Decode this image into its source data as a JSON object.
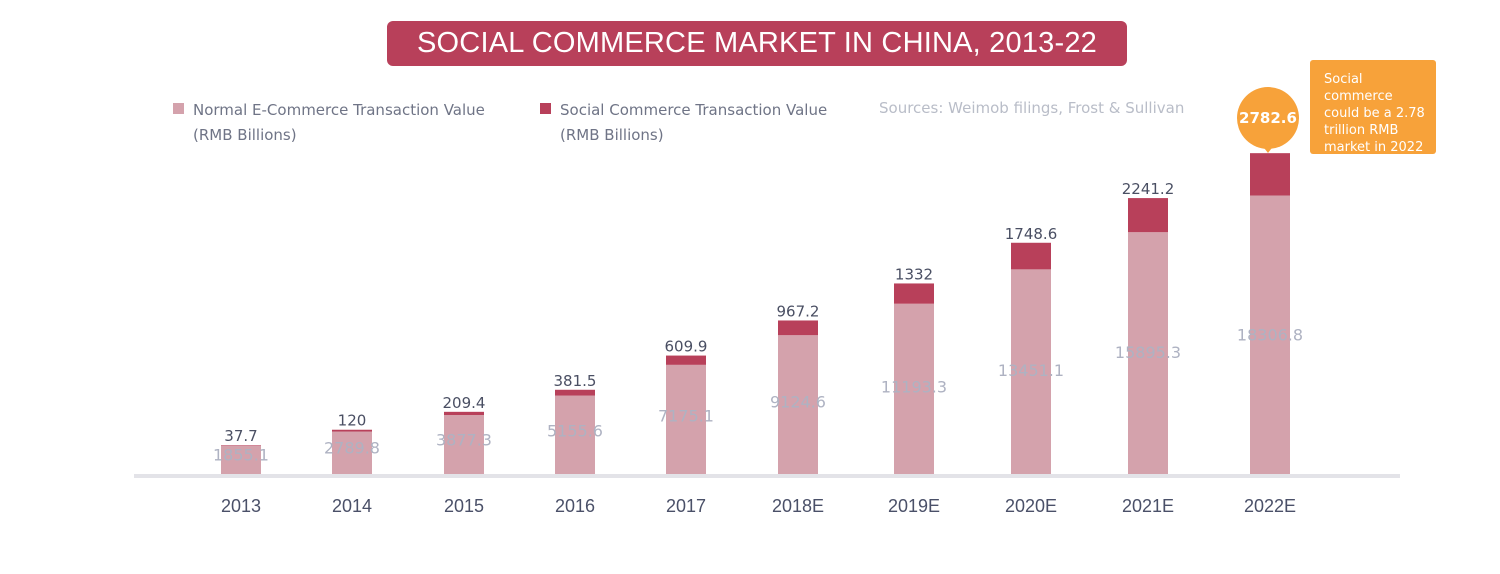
{
  "chart_data": {
    "type": "bar",
    "stacked": true,
    "title": "SOCIAL COMMERCE MARKET IN CHINA, 2013-22",
    "source": "Sources: Weimob filings, Frost & Sullivan",
    "categories": [
      "2013",
      "2014",
      "2015",
      "2016",
      "2017",
      "2018E",
      "2019E",
      "2020E",
      "2021E",
      "2022E"
    ],
    "series": [
      {
        "legend_line1": "Normal E-Commerce Transaction Value",
        "legend_line2": "(RMB Billions)",
        "color": "#d4a2ac",
        "values": [
          1855.1,
          2789.8,
          3877.3,
          5155.6,
          7175.1,
          9124.6,
          11193.3,
          13451.1,
          15895.3,
          18306.8
        ],
        "labels": [
          "1855.1",
          "2789.8",
          "3877.3",
          "5155.6",
          "7175.1",
          "9124.6",
          "11193.3",
          "13451.1",
          "15895.3",
          "18306.8"
        ]
      },
      {
        "legend_line1": "Social Commerce Transaction Value",
        "legend_line2": "(RMB Billions)",
        "color": "#b8405a",
        "values": [
          37.7,
          120,
          209.4,
          381.5,
          609.9,
          967.2,
          1332,
          1748.6,
          2241.2,
          2782.6
        ],
        "labels": [
          "37.7",
          "120",
          "209.4",
          "381.5",
          "609.9",
          "967.2",
          "1332",
          "1748.6",
          "2241.2",
          ""
        ]
      }
    ],
    "ylim": [
      0,
      21100
    ],
    "grid": false,
    "legend_position": "top-left",
    "callout": {
      "value": "2782.6",
      "text": "Social commerce could be a 2.78 trillion RMB market in 2022",
      "color": "#f7a23a"
    }
  }
}
